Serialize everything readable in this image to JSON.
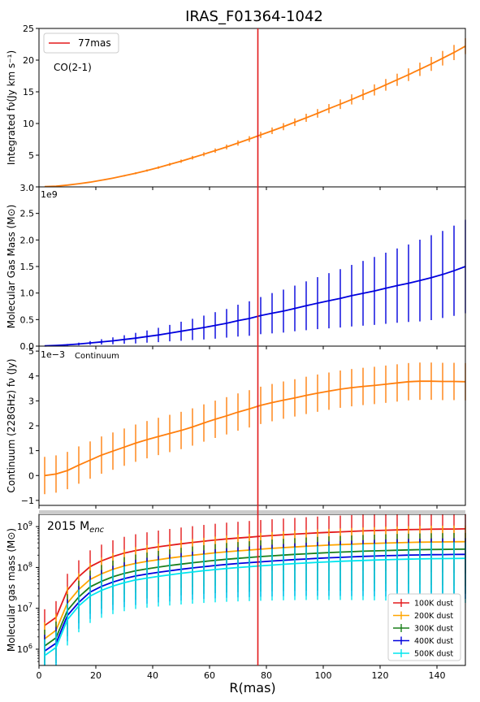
{
  "figure_title": "IRAS_F01364-1042",
  "shared_xlabel": "R(mas)",
  "xlim": [
    0,
    150
  ],
  "x_ticks": [
    0,
    20,
    40,
    60,
    80,
    100,
    120,
    140
  ],
  "marker": {
    "r": 77,
    "legend_label": "77mas",
    "color": "#e31a1c"
  },
  "chart_data": [
    {
      "type": "line",
      "panel": "co-flux",
      "annotation": "CO(2-1)",
      "ylabel": "Integrated fν(Jy km s⁻¹)",
      "ylim": [
        0,
        25
      ],
      "y_ticks": [
        0,
        5,
        10,
        15,
        20,
        25
      ],
      "y_tick_labels": [
        "",
        "5",
        "10",
        "15",
        "20",
        "25"
      ],
      "extra_bottom_label": "3.0",
      "grid": false,
      "legend": "top-left",
      "series": [
        {
          "color": "#ff7f0e",
          "x": [
            2,
            6,
            10,
            14,
            18,
            22,
            26,
            30,
            34,
            38,
            42,
            46,
            50,
            54,
            58,
            62,
            66,
            70,
            74,
            78,
            82,
            86,
            90,
            94,
            98,
            102,
            106,
            110,
            114,
            118,
            122,
            126,
            130,
            134,
            138,
            142,
            146,
            150
          ],
          "y": [
            0.05,
            0.12,
            0.28,
            0.5,
            0.75,
            1.05,
            1.38,
            1.75,
            2.15,
            2.58,
            3.05,
            3.55,
            4.05,
            4.6,
            5.15,
            5.72,
            6.3,
            6.92,
            7.55,
            8.2,
            8.85,
            9.5,
            10.2,
            10.9,
            11.6,
            12.35,
            13.05,
            13.8,
            14.55,
            15.3,
            16.1,
            16.9,
            17.7,
            18.55,
            19.4,
            20.3,
            21.2,
            22.2
          ],
          "err": [
            0.02,
            0.03,
            0.04,
            0.05,
            0.06,
            0.08,
            0.1,
            0.12,
            0.15,
            0.17,
            0.2,
            0.23,
            0.26,
            0.29,
            0.32,
            0.35,
            0.38,
            0.42,
            0.45,
            0.49,
            0.52,
            0.56,
            0.6,
            0.64,
            0.68,
            0.72,
            0.76,
            0.8,
            0.84,
            0.88,
            0.92,
            0.96,
            1.0,
            1.05,
            1.1,
            1.15,
            1.2,
            1.25
          ]
        }
      ]
    },
    {
      "type": "line",
      "panel": "gas-mass",
      "ylabel": "Molecular Gas Mass (M⊙)",
      "offset_label": "1e9",
      "ylim": [
        0,
        3.0
      ],
      "y_ticks": [
        0,
        0.5,
        1.0,
        1.5,
        2.0,
        2.5
      ],
      "y_tick_labels": [
        "0.0",
        "0.5",
        "1.0",
        "1.5",
        "2.0",
        "2.5"
      ],
      "extra_top_label": "3.0",
      "grid": false,
      "series": [
        {
          "color": "#0000dd",
          "x": [
            2,
            6,
            10,
            14,
            18,
            22,
            26,
            30,
            34,
            38,
            42,
            46,
            50,
            54,
            58,
            62,
            66,
            70,
            74,
            78,
            82,
            86,
            90,
            94,
            98,
            102,
            106,
            110,
            114,
            118,
            122,
            126,
            130,
            134,
            138,
            142,
            146,
            150
          ],
          "y": [
            0.005,
            0.012,
            0.025,
            0.04,
            0.06,
            0.08,
            0.1,
            0.125,
            0.15,
            0.18,
            0.21,
            0.245,
            0.28,
            0.315,
            0.35,
            0.39,
            0.43,
            0.48,
            0.52,
            0.575,
            0.62,
            0.66,
            0.71,
            0.76,
            0.81,
            0.855,
            0.9,
            0.95,
            0.995,
            1.04,
            1.09,
            1.14,
            1.185,
            1.235,
            1.29,
            1.35,
            1.42,
            1.5
          ],
          "err": [
            0.005,
            0.01,
            0.015,
            0.025,
            0.035,
            0.05,
            0.065,
            0.08,
            0.1,
            0.115,
            0.135,
            0.155,
            0.18,
            0.2,
            0.225,
            0.25,
            0.27,
            0.3,
            0.325,
            0.35,
            0.38,
            0.405,
            0.43,
            0.46,
            0.49,
            0.52,
            0.55,
            0.58,
            0.61,
            0.64,
            0.67,
            0.7,
            0.73,
            0.77,
            0.8,
            0.82,
            0.85,
            0.88
          ]
        }
      ]
    },
    {
      "type": "line",
      "panel": "continuum",
      "annotation": "Continuum",
      "ylabel": "Continuum (228GHz) fν (Jy)",
      "offset_label": "1e−3",
      "ylim": [
        -1.2,
        5.2
      ],
      "y_ticks": [
        -1,
        0,
        1,
        2,
        3,
        4,
        5
      ],
      "y_tick_labels": [
        "−1",
        "0",
        "1",
        "2",
        "3",
        "4",
        "5"
      ],
      "grid": false,
      "series": [
        {
          "color": "#ff7f0e",
          "x": [
            2,
            6,
            10,
            14,
            18,
            22,
            26,
            30,
            34,
            38,
            42,
            46,
            50,
            54,
            58,
            62,
            66,
            70,
            74,
            78,
            82,
            86,
            90,
            94,
            98,
            102,
            106,
            110,
            114,
            118,
            122,
            126,
            130,
            134,
            138,
            142,
            146,
            150
          ],
          "y": [
            0.0,
            0.06,
            0.2,
            0.42,
            0.62,
            0.82,
            0.98,
            1.14,
            1.3,
            1.44,
            1.57,
            1.69,
            1.81,
            1.95,
            2.11,
            2.26,
            2.4,
            2.55,
            2.68,
            2.82,
            2.93,
            3.03,
            3.12,
            3.22,
            3.31,
            3.39,
            3.47,
            3.53,
            3.58,
            3.62,
            3.67,
            3.72,
            3.77,
            3.79,
            3.79,
            3.78,
            3.78,
            3.77
          ],
          "err": [
            0.75,
            0.75,
            0.75,
            0.75,
            0.75,
            0.75,
            0.75,
            0.75,
            0.75,
            0.75,
            0.75,
            0.75,
            0.75,
            0.75,
            0.75,
            0.75,
            0.75,
            0.75,
            0.75,
            0.75,
            0.75,
            0.75,
            0.75,
            0.75,
            0.75,
            0.75,
            0.75,
            0.75,
            0.75,
            0.75,
            0.75,
            0.75,
            0.75,
            0.75,
            0.75,
            0.75,
            0.75,
            0.75
          ]
        }
      ]
    },
    {
      "type": "line",
      "panel": "enclosed-mass",
      "annotation_main": "2015 M",
      "annotation_sub": "enc",
      "ylabel": "Molecular gas mass (M⊙)",
      "yscale": "log",
      "ylim": [
        400000,
        2000000000
      ],
      "y_ticks": [
        1000000,
        10000000,
        100000000,
        1000000000
      ],
      "y_tick_base": "10",
      "y_tick_exponents": [
        "6",
        "7",
        "8",
        "9"
      ],
      "xlabel": "R(mas)",
      "grid": false,
      "legend": "bottom-right",
      "series": [
        {
          "name": "100K dust",
          "color": "#e31a1c",
          "x": [
            2,
            6,
            10,
            14,
            18,
            22,
            26,
            30,
            34,
            38,
            42,
            46,
            50,
            54,
            58,
            62,
            66,
            70,
            74,
            78,
            82,
            86,
            90,
            94,
            98,
            102,
            106,
            110,
            114,
            118,
            122,
            126,
            130,
            134,
            138,
            142,
            146,
            150
          ],
          "y": [
            3800000,
            6000000,
            28000000,
            60000000,
            105000000,
            145000000,
            185000000,
            225000000,
            260000000,
            290000000,
            320000000,
            350000000,
            380000000,
            410000000,
            440000000,
            470000000,
            500000000,
            525000000,
            550000000,
            580000000,
            605000000,
            630000000,
            655000000,
            680000000,
            705000000,
            725000000,
            745000000,
            765000000,
            785000000,
            800000000,
            815000000,
            830000000,
            845000000,
            855000000,
            865000000,
            870000000,
            875000000,
            880000000
          ]
        },
        {
          "name": "200K dust",
          "color": "#ffa500",
          "x": [
            2,
            6,
            10,
            14,
            18,
            22,
            26,
            30,
            34,
            38,
            42,
            46,
            50,
            54,
            58,
            62,
            66,
            70,
            74,
            78,
            82,
            86,
            90,
            94,
            98,
            102,
            106,
            110,
            114,
            118,
            122,
            126,
            130,
            134,
            138,
            142,
            146,
            150
          ],
          "y": [
            1800000,
            2900000,
            13500000,
            29000000,
            51000000,
            70000000,
            90000000,
            109000000,
            126000000,
            141000000,
            155000000,
            170000000,
            184000000,
            199000000,
            213000000,
            228000000,
            242000000,
            255000000,
            267000000,
            281000000,
            294000000,
            306000000,
            318000000,
            330000000,
            342000000,
            352000000,
            362000000,
            371000000,
            381000000,
            388000000,
            396000000,
            403000000,
            410000000,
            415000000,
            420000000,
            422000000,
            425000000,
            427000000
          ]
        },
        {
          "name": "300K dust",
          "color": "#1a7f1a",
          "x": [
            2,
            6,
            10,
            14,
            18,
            22,
            26,
            30,
            34,
            38,
            42,
            46,
            50,
            54,
            58,
            62,
            66,
            70,
            74,
            78,
            82,
            86,
            90,
            94,
            98,
            102,
            106,
            110,
            114,
            118,
            122,
            126,
            130,
            134,
            138,
            142,
            146,
            150
          ],
          "y": [
            1200000,
            1900000,
            8900000,
            19000000,
            33500000,
            46000000,
            59000000,
            71500000,
            83000000,
            92500000,
            102000000,
            111500000,
            121000000,
            130500000,
            140000000,
            149500000,
            159000000,
            167500000,
            175500000,
            184500000,
            193000000,
            201000000,
            209000000,
            216500000,
            224500000,
            231000000,
            237500000,
            243500000,
            250000000,
            254500000,
            260000000,
            264500000,
            269000000,
            272500000,
            275500000,
            277000000,
            279000000,
            280500000
          ]
        },
        {
          "name": "400K dust",
          "color": "#0000dd",
          "x": [
            2,
            6,
            10,
            14,
            18,
            22,
            26,
            30,
            34,
            38,
            42,
            46,
            50,
            54,
            58,
            62,
            66,
            70,
            74,
            78,
            82,
            86,
            90,
            94,
            98,
            102,
            106,
            110,
            114,
            118,
            122,
            126,
            130,
            134,
            138,
            142,
            146,
            150
          ],
          "y": [
            900000,
            1400000,
            6700000,
            14000000,
            25000000,
            34500000,
            44000000,
            53500000,
            62000000,
            69000000,
            76000000,
            83000000,
            90000000,
            97500000,
            104500000,
            111500000,
            118500000,
            125000000,
            131000000,
            137500000,
            144000000,
            150000000,
            156000000,
            161500000,
            167500000,
            172500000,
            177000000,
            181500000,
            186500000,
            190000000,
            194000000,
            197500000,
            200500000,
            203000000,
            205500000,
            206500000,
            208000000,
            209000000
          ]
        },
        {
          "name": "500K dust",
          "color": "#00e5ee",
          "x": [
            2,
            6,
            10,
            14,
            18,
            22,
            26,
            30,
            34,
            38,
            42,
            46,
            50,
            54,
            58,
            62,
            66,
            70,
            74,
            78,
            82,
            86,
            90,
            94,
            98,
            102,
            106,
            110,
            114,
            118,
            122,
            126,
            130,
            134,
            138,
            142,
            146,
            150
          ],
          "y": [
            700000,
            1100000,
            5300000,
            11500000,
            20000000,
            27500000,
            35000000,
            42500000,
            49500000,
            55000000,
            60500000,
            66000000,
            72000000,
            77500000,
            83500000,
            89000000,
            94500000,
            99500000,
            104500000,
            109500000,
            114500000,
            119500000,
            124500000,
            129000000,
            133500000,
            137500000,
            141500000,
            145000000,
            148500000,
            151500000,
            154500000,
            157500000,
            160000000,
            162000000,
            164000000,
            165000000,
            166000000,
            167000000
          ]
        }
      ]
    }
  ]
}
